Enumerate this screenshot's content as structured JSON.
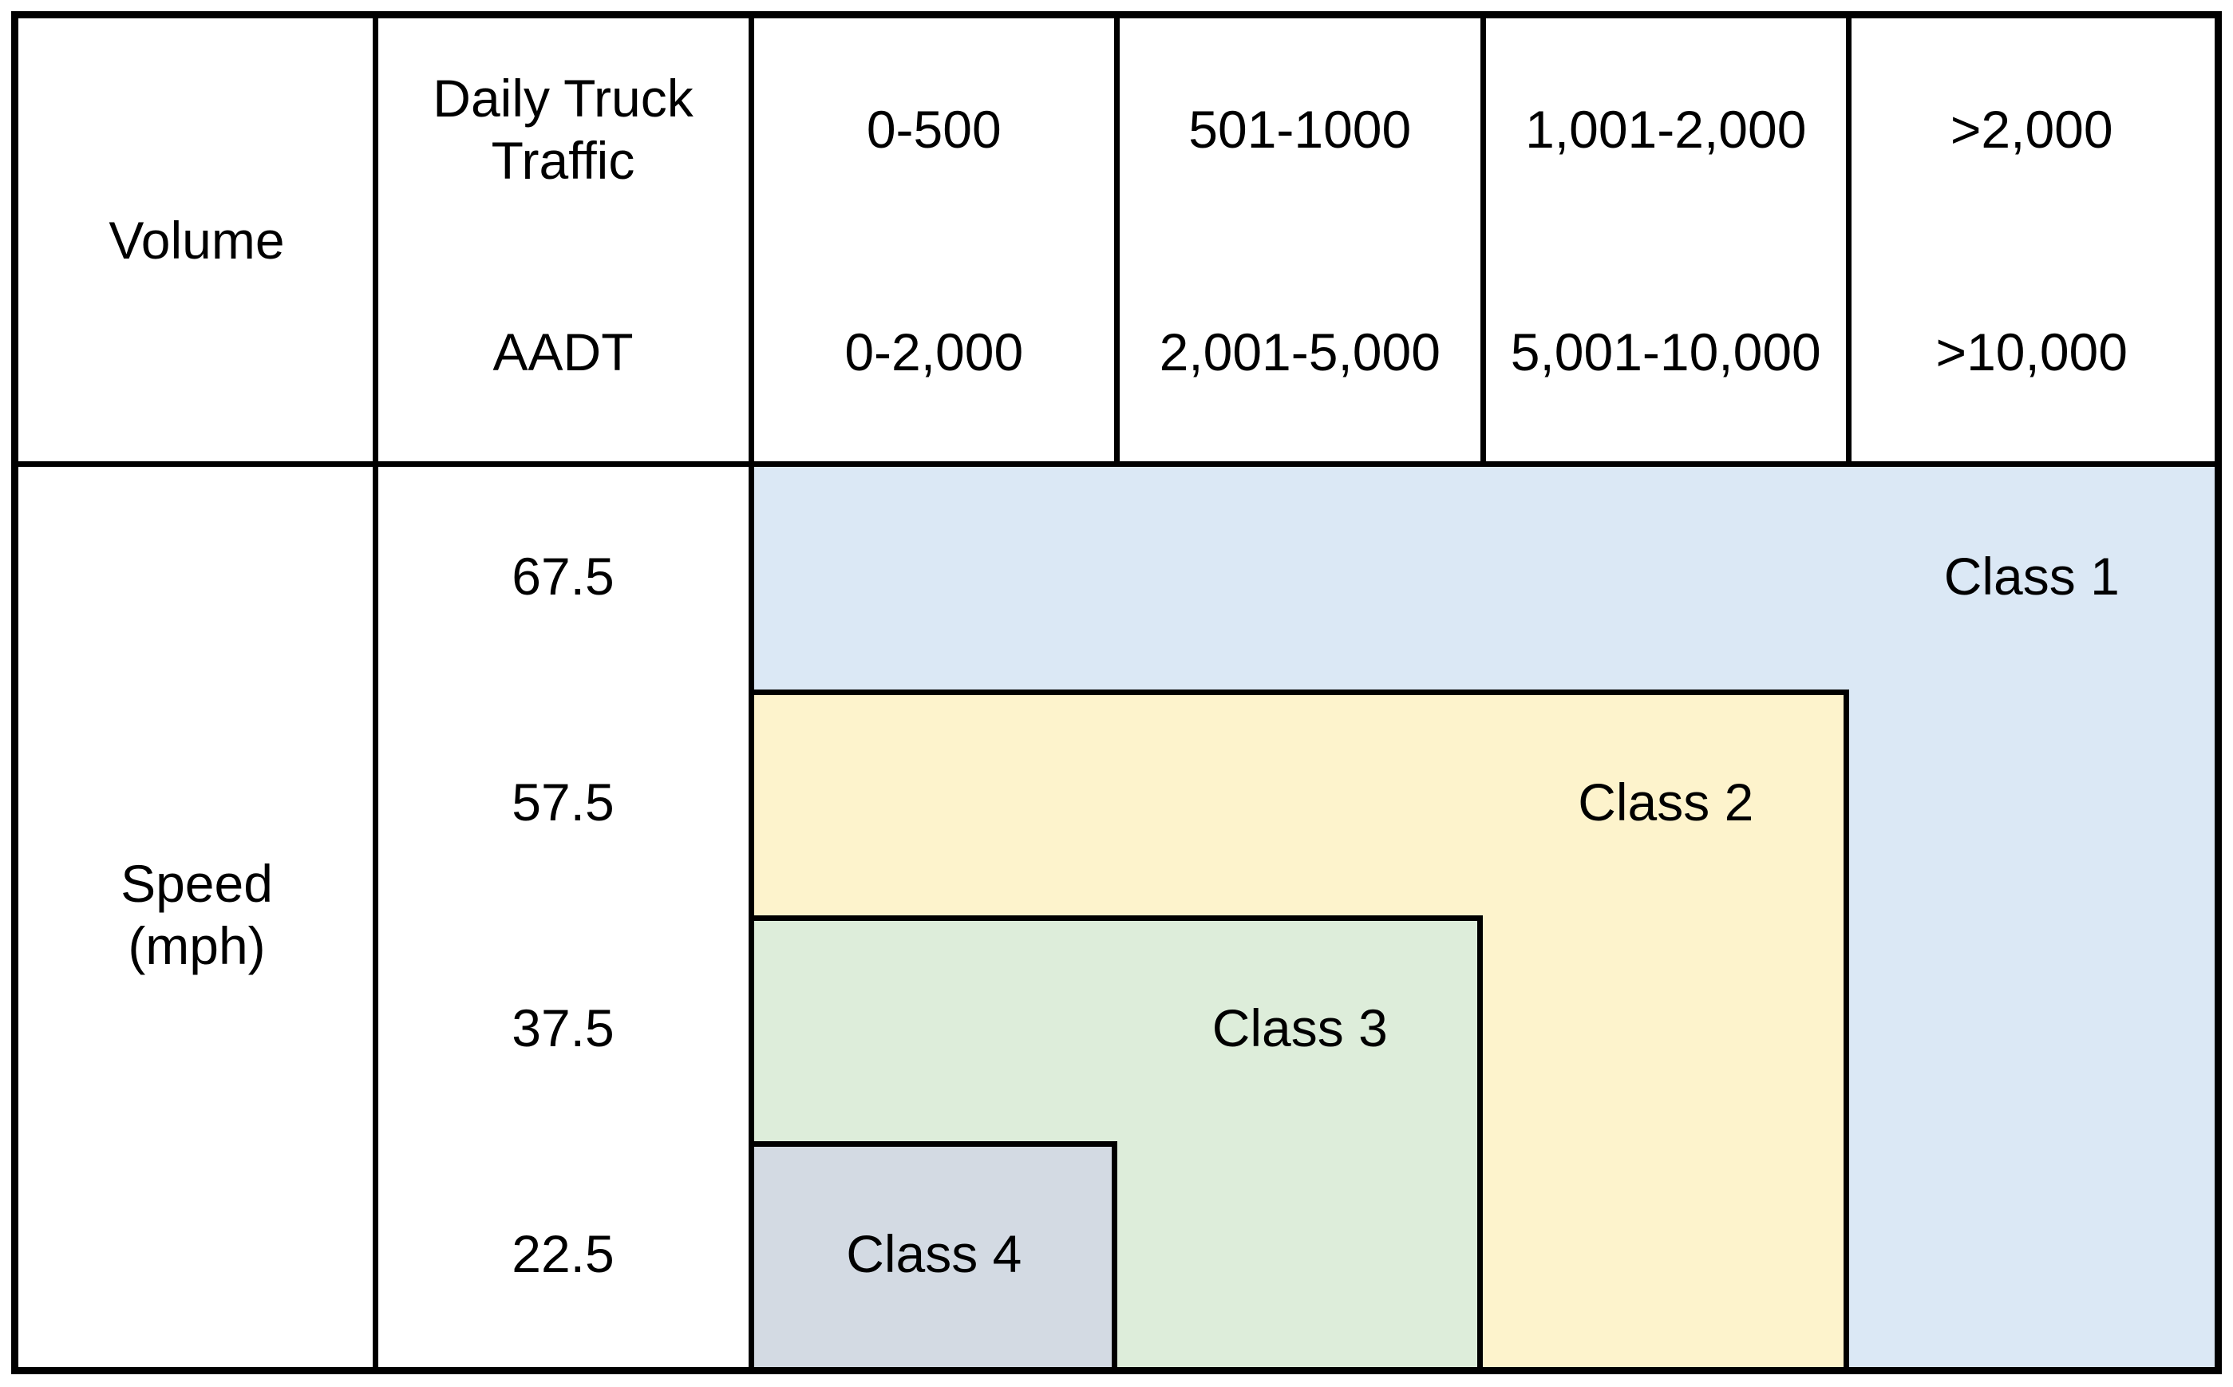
{
  "figure": {
    "volume_axis_label": "Volume",
    "speed_axis_label": "Speed\n(mph)",
    "traffic_metric_labels": {
      "truck": "Daily Truck Traffic",
      "aadt": "AADT"
    },
    "truck_ranges": [
      "0-500",
      "501-1000",
      "1,001-2,000",
      ">2,000"
    ],
    "aadt_ranges": [
      "0-2,000",
      "2,001-5,000",
      "5,001-10,000",
      ">10,000"
    ],
    "speed_values": [
      "67.5",
      "57.5",
      "37.5",
      "22.5"
    ],
    "classes": [
      {
        "label": "Class 1",
        "color": "#DBE8F5"
      },
      {
        "label": "Class 2",
        "color": "#FDF3CC"
      },
      {
        "label": "Class 3",
        "color": "#DDEDDA"
      },
      {
        "label": "Class 4",
        "color": "#D3DAE3"
      }
    ],
    "line_color": "#000000"
  }
}
